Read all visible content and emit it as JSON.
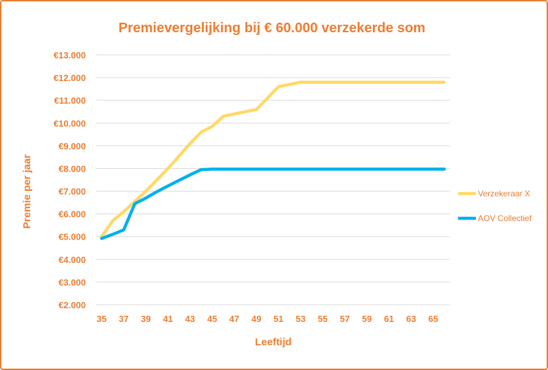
{
  "chart_data": {
    "type": "line",
    "title": "Premievergelijking bij € 60.000 verzekerde som",
    "xlabel": "Leeftijd",
    "ylabel": "Premie per jaar",
    "xlim": [
      35,
      66
    ],
    "ylim": [
      2000,
      13000
    ],
    "x_tick_labels": [
      "35",
      "37",
      "39",
      "41",
      "43",
      "45",
      "47",
      "49",
      "51",
      "53",
      "55",
      "57",
      "59",
      "61",
      "63",
      "65"
    ],
    "y_tick_labels": [
      "€2.000",
      "€3.000",
      "€4.000",
      "€5.000",
      "€6.000",
      "€7.000",
      "€8.000",
      "€9.000",
      "€10.000",
      "€11.000",
      "€12.000",
      "€13.000"
    ],
    "y_ticks": [
      2000,
      3000,
      4000,
      5000,
      6000,
      7000,
      8000,
      9000,
      10000,
      11000,
      12000,
      13000
    ],
    "x_ticks": [
      35,
      37,
      39,
      41,
      43,
      45,
      47,
      49,
      51,
      53,
      55,
      57,
      59,
      61,
      63,
      65
    ],
    "x": [
      35,
      36,
      37,
      38,
      39,
      40,
      41,
      42,
      43,
      44,
      45,
      46,
      47,
      48,
      49,
      50,
      51,
      52,
      53,
      54,
      55,
      56,
      57,
      58,
      59,
      60,
      61,
      62,
      63,
      64,
      65,
      66
    ],
    "grid": true,
    "legend_position": "right",
    "series": [
      {
        "name": "Verzekeraar X",
        "color": "#FFD966",
        "values": [
          5000,
          5700,
          6100,
          6550,
          7000,
          7500,
          8000,
          8550,
          9100,
          9600,
          9850,
          10300,
          10400,
          10500,
          10600,
          11100,
          11600,
          11700,
          11800,
          11800,
          11800,
          11800,
          11800,
          11800,
          11800,
          11800,
          11800,
          11800,
          11800,
          11800,
          11800,
          11800
        ]
      },
      {
        "name": "AOV Collectief",
        "color": "#00B0F0",
        "values": [
          4920,
          5100,
          5300,
          6450,
          6700,
          6980,
          7230,
          7480,
          7720,
          7950,
          7970,
          7970,
          7970,
          7970,
          7970,
          7970,
          7970,
          7970,
          7970,
          7970,
          7970,
          7970,
          7970,
          7970,
          7970,
          7970,
          7970,
          7970,
          7970,
          7970,
          7970,
          7970
        ]
      }
    ]
  }
}
